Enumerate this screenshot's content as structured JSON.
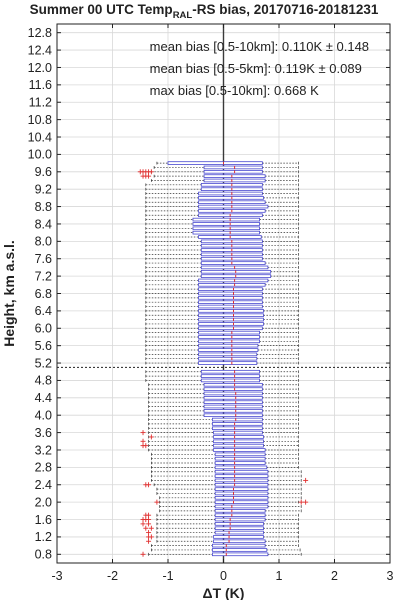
{
  "chart_data": {
    "type": "boxplot",
    "orientation": "horizontal",
    "title_parts": {
      "prefix": "Summer 00 UTC Temp",
      "subscript": "RAL",
      "suffix": "-RS bias, 20170716-20181231"
    },
    "xlabel": "ΔT (K)",
    "ylabel": "Height, km a.s.l.",
    "xlim": [
      -3,
      3
    ],
    "ylim": [
      0.6,
      13.0
    ],
    "xticks": [
      -3,
      -2,
      -1,
      0,
      1,
      2,
      3
    ],
    "yticks": [
      "0.8",
      "1.2",
      "1.6",
      "2.0",
      "2.4",
      "2.8",
      "3.2",
      "3.6",
      "4.0",
      "4.4",
      "4.8",
      "5.2",
      "5.6",
      "6.0",
      "6.4",
      "6.8",
      "7.2",
      "7.6",
      "8.0",
      "8.4",
      "8.8",
      "9.2",
      "9.6",
      "10.0",
      "10.4",
      "10.8",
      "11.2",
      "11.6",
      "12.0",
      "12.4",
      "12.8"
    ],
    "grid": true,
    "reference_lines": {
      "vertical_x": 0,
      "horizontal_y": 5.1
    },
    "annotations": [
      "mean bias [0.5-10km]: 0.110K ± 0.148",
      "mean bias [0.5-5km]: 0.119K ± 0.089",
      "max bias [0.5-10km]: 0.668 K"
    ],
    "colors": {
      "box": "#4a4ad0",
      "median": "#e03030",
      "outlier": "#e03030",
      "whisker": "#333333",
      "grid": "#d8d8d8"
    },
    "boxes": [
      {
        "h": 0.8,
        "wl": -1.35,
        "q1": -0.2,
        "med": 0.05,
        "q3": 0.8,
        "wh": 1.4,
        "out": [
          -1.45
        ]
      },
      {
        "h": 0.9,
        "wl": -1.3,
        "q1": -0.2,
        "med": 0.05,
        "q3": 0.78,
        "wh": 1.38,
        "out": []
      },
      {
        "h": 1.0,
        "wl": -1.3,
        "q1": -0.2,
        "med": 0.05,
        "q3": 0.75,
        "wh": 1.35,
        "out": []
      },
      {
        "h": 1.1,
        "wl": -1.2,
        "q1": -0.18,
        "med": 0.1,
        "q3": 0.75,
        "wh": 1.35,
        "out": [
          -1.35
        ]
      },
      {
        "h": 1.2,
        "wl": -1.2,
        "q1": -0.18,
        "med": 0.1,
        "q3": 0.72,
        "wh": 1.35,
        "out": [
          -1.35,
          -1.3
        ]
      },
      {
        "h": 1.3,
        "wl": -1.2,
        "q1": -0.15,
        "med": 0.1,
        "q3": 0.72,
        "wh": 1.35,
        "out": [
          -1.35
        ]
      },
      {
        "h": 1.4,
        "wl": -1.2,
        "q1": -0.15,
        "med": 0.12,
        "q3": 0.72,
        "wh": 1.35,
        "out": [
          -1.4,
          -1.3
        ]
      },
      {
        "h": 1.5,
        "wl": -1.2,
        "q1": -0.15,
        "med": 0.12,
        "q3": 0.72,
        "wh": 1.35,
        "out": [
          -1.45,
          -1.35
        ]
      },
      {
        "h": 1.6,
        "wl": -1.2,
        "q1": -0.15,
        "med": 0.12,
        "q3": 0.75,
        "wh": 1.35,
        "out": [
          -1.45,
          -1.4,
          -1.35
        ]
      },
      {
        "h": 1.7,
        "wl": -1.2,
        "q1": -0.15,
        "med": 0.15,
        "q3": 0.75,
        "wh": 1.35,
        "out": [
          -1.4,
          -1.35
        ]
      },
      {
        "h": 1.8,
        "wl": -1.15,
        "q1": -0.15,
        "med": 0.15,
        "q3": 0.75,
        "wh": 1.4,
        "out": []
      },
      {
        "h": 1.9,
        "wl": -1.15,
        "q1": -0.15,
        "med": 0.15,
        "q3": 0.8,
        "wh": 1.4,
        "out": []
      },
      {
        "h": 2.0,
        "wl": -1.15,
        "q1": -0.15,
        "med": 0.18,
        "q3": 0.8,
        "wh": 1.35,
        "out": [
          -1.2,
          1.4,
          1.48
        ]
      },
      {
        "h": 2.1,
        "wl": -1.15,
        "q1": -0.15,
        "med": 0.18,
        "q3": 0.8,
        "wh": 1.4,
        "out": []
      },
      {
        "h": 2.2,
        "wl": -1.2,
        "q1": -0.15,
        "med": 0.18,
        "q3": 0.8,
        "wh": 1.4,
        "out": []
      },
      {
        "h": 2.3,
        "wl": -1.2,
        "q1": -0.15,
        "med": 0.18,
        "q3": 0.8,
        "wh": 1.4,
        "out": []
      },
      {
        "h": 2.4,
        "wl": -1.25,
        "q1": -0.15,
        "med": 0.2,
        "q3": 0.8,
        "wh": 1.4,
        "out": [
          -1.4,
          -1.35
        ]
      },
      {
        "h": 2.5,
        "wl": -1.3,
        "q1": -0.15,
        "med": 0.2,
        "q3": 0.8,
        "wh": 1.4,
        "out": [
          1.48
        ]
      },
      {
        "h": 2.6,
        "wl": -1.3,
        "q1": -0.15,
        "med": 0.2,
        "q3": 0.8,
        "wh": 1.4,
        "out": []
      },
      {
        "h": 2.7,
        "wl": -1.3,
        "q1": -0.15,
        "med": 0.2,
        "q3": 0.8,
        "wh": 1.4,
        "out": []
      },
      {
        "h": 2.8,
        "wl": -1.3,
        "q1": -0.15,
        "med": 0.2,
        "q3": 0.78,
        "wh": 1.35,
        "out": []
      },
      {
        "h": 2.9,
        "wl": -1.3,
        "q1": -0.15,
        "med": 0.2,
        "q3": 0.75,
        "wh": 1.35,
        "out": []
      },
      {
        "h": 3.0,
        "wl": -1.3,
        "q1": -0.15,
        "med": 0.2,
        "q3": 0.75,
        "wh": 1.35,
        "out": []
      },
      {
        "h": 3.1,
        "wl": -1.3,
        "q1": -0.15,
        "med": 0.2,
        "q3": 0.75,
        "wh": 1.35,
        "out": []
      },
      {
        "h": 3.2,
        "wl": -1.35,
        "q1": -0.18,
        "med": 0.2,
        "q3": 0.75,
        "wh": 1.35,
        "out": []
      },
      {
        "h": 3.3,
        "wl": -1.35,
        "q1": -0.18,
        "med": 0.2,
        "q3": 0.72,
        "wh": 1.35,
        "out": [
          -1.45,
          -1.4
        ]
      },
      {
        "h": 3.4,
        "wl": -1.35,
        "q1": -0.18,
        "med": 0.2,
        "q3": 0.72,
        "wh": 1.35,
        "out": [
          -1.45
        ]
      },
      {
        "h": 3.5,
        "wl": -1.35,
        "q1": -0.18,
        "med": 0.2,
        "q3": 0.72,
        "wh": 1.35,
        "out": [
          -1.3
        ]
      },
      {
        "h": 3.6,
        "wl": -1.35,
        "q1": -0.18,
        "med": 0.2,
        "q3": 0.7,
        "wh": 1.35,
        "out": [
          -1.45
        ]
      },
      {
        "h": 3.7,
        "wl": -1.35,
        "q1": -0.2,
        "med": 0.2,
        "q3": 0.7,
        "wh": 1.35,
        "out": []
      },
      {
        "h": 3.8,
        "wl": -1.35,
        "q1": -0.2,
        "med": 0.2,
        "q3": 0.7,
        "wh": 1.35,
        "out": []
      },
      {
        "h": 3.9,
        "wl": -1.35,
        "q1": -0.2,
        "med": 0.22,
        "q3": 0.7,
        "wh": 1.35,
        "out": []
      },
      {
        "h": 4.0,
        "wl": -1.35,
        "q1": -0.35,
        "med": 0.22,
        "q3": 0.7,
        "wh": 1.35,
        "out": []
      },
      {
        "h": 4.1,
        "wl": -1.35,
        "q1": -0.35,
        "med": 0.22,
        "q3": 0.7,
        "wh": 1.35,
        "out": []
      },
      {
        "h": 4.2,
        "wl": -1.35,
        "q1": -0.35,
        "med": 0.22,
        "q3": 0.7,
        "wh": 1.35,
        "out": []
      },
      {
        "h": 4.3,
        "wl": -1.35,
        "q1": -0.35,
        "med": 0.22,
        "q3": 0.7,
        "wh": 1.35,
        "out": []
      },
      {
        "h": 4.4,
        "wl": -1.35,
        "q1": -0.35,
        "med": 0.22,
        "q3": 0.7,
        "wh": 1.35,
        "out": []
      },
      {
        "h": 4.5,
        "wl": -1.35,
        "q1": -0.35,
        "med": 0.22,
        "q3": 0.7,
        "wh": 1.35,
        "out": []
      },
      {
        "h": 4.6,
        "wl": -1.35,
        "q1": -0.35,
        "med": 0.2,
        "q3": 0.7,
        "wh": 1.35,
        "out": []
      },
      {
        "h": 4.7,
        "wl": -1.35,
        "q1": -0.35,
        "med": 0.2,
        "q3": 0.7,
        "wh": 1.35,
        "out": []
      },
      {
        "h": 4.8,
        "wl": -1.4,
        "q1": -0.4,
        "med": 0.2,
        "q3": 0.65,
        "wh": 1.35,
        "out": []
      },
      {
        "h": 4.9,
        "wl": -1.4,
        "q1": -0.4,
        "med": 0.2,
        "q3": 0.65,
        "wh": 1.35,
        "out": []
      },
      {
        "h": 5.0,
        "wl": -1.4,
        "q1": -0.4,
        "med": 0.2,
        "q3": 0.65,
        "wh": 1.35,
        "out": []
      },
      {
        "h": 5.2,
        "wl": -1.4,
        "q1": -0.45,
        "med": 0.15,
        "q3": 0.6,
        "wh": 1.35,
        "out": []
      },
      {
        "h": 5.3,
        "wl": -1.4,
        "q1": -0.45,
        "med": 0.15,
        "q3": 0.6,
        "wh": 1.35,
        "out": []
      },
      {
        "h": 5.4,
        "wl": -1.4,
        "q1": -0.45,
        "med": 0.15,
        "q3": 0.6,
        "wh": 1.35,
        "out": []
      },
      {
        "h": 5.5,
        "wl": -1.4,
        "q1": -0.45,
        "med": 0.15,
        "q3": 0.62,
        "wh": 1.35,
        "out": []
      },
      {
        "h": 5.6,
        "wl": -1.4,
        "q1": -0.45,
        "med": 0.15,
        "q3": 0.62,
        "wh": 1.35,
        "out": []
      },
      {
        "h": 5.7,
        "wl": -1.4,
        "q1": -0.45,
        "med": 0.15,
        "q3": 0.65,
        "wh": 1.35,
        "out": []
      },
      {
        "h": 5.8,
        "wl": -1.4,
        "q1": -0.45,
        "med": 0.15,
        "q3": 0.65,
        "wh": 1.35,
        "out": []
      },
      {
        "h": 5.9,
        "wl": -1.4,
        "q1": -0.45,
        "med": 0.15,
        "q3": 0.65,
        "wh": 1.35,
        "out": []
      },
      {
        "h": 6.0,
        "wl": -1.4,
        "q1": -0.45,
        "med": 0.18,
        "q3": 0.7,
        "wh": 1.35,
        "out": []
      },
      {
        "h": 6.1,
        "wl": -1.4,
        "q1": -0.45,
        "med": 0.18,
        "q3": 0.72,
        "wh": 1.35,
        "out": []
      },
      {
        "h": 6.2,
        "wl": -1.4,
        "q1": -0.45,
        "med": 0.18,
        "q3": 0.72,
        "wh": 1.35,
        "out": []
      },
      {
        "h": 6.3,
        "wl": -1.4,
        "q1": -0.45,
        "med": 0.18,
        "q3": 0.72,
        "wh": 1.35,
        "out": []
      },
      {
        "h": 6.4,
        "wl": -1.4,
        "q1": -0.45,
        "med": 0.18,
        "q3": 0.72,
        "wh": 1.35,
        "out": []
      },
      {
        "h": 6.5,
        "wl": -1.4,
        "q1": -0.45,
        "med": 0.18,
        "q3": 0.7,
        "wh": 1.35,
        "out": []
      },
      {
        "h": 6.6,
        "wl": -1.4,
        "q1": -0.45,
        "med": 0.18,
        "q3": 0.7,
        "wh": 1.35,
        "out": []
      },
      {
        "h": 6.7,
        "wl": -1.4,
        "q1": -0.45,
        "med": 0.18,
        "q3": 0.7,
        "wh": 1.35,
        "out": []
      },
      {
        "h": 6.8,
        "wl": -1.4,
        "q1": -0.45,
        "med": 0.18,
        "q3": 0.7,
        "wh": 1.35,
        "out": []
      },
      {
        "h": 6.9,
        "wl": -1.4,
        "q1": -0.45,
        "med": 0.18,
        "q3": 0.7,
        "wh": 1.35,
        "out": []
      },
      {
        "h": 7.0,
        "wl": -1.4,
        "q1": -0.45,
        "med": 0.2,
        "q3": 0.75,
        "wh": 1.35,
        "out": []
      },
      {
        "h": 7.1,
        "wl": -1.4,
        "q1": -0.45,
        "med": 0.2,
        "q3": 0.8,
        "wh": 1.35,
        "out": []
      },
      {
        "h": 7.2,
        "wl": -1.4,
        "q1": -0.4,
        "med": 0.22,
        "q3": 0.85,
        "wh": 1.35,
        "out": []
      },
      {
        "h": 7.3,
        "wl": -1.4,
        "q1": -0.4,
        "med": 0.22,
        "q3": 0.85,
        "wh": 1.35,
        "out": []
      },
      {
        "h": 7.4,
        "wl": -1.4,
        "q1": -0.4,
        "med": 0.2,
        "q3": 0.8,
        "wh": 1.35,
        "out": []
      },
      {
        "h": 7.5,
        "wl": -1.4,
        "q1": -0.4,
        "med": 0.15,
        "q3": 0.75,
        "wh": 1.35,
        "out": []
      },
      {
        "h": 7.6,
        "wl": -1.4,
        "q1": -0.4,
        "med": 0.15,
        "q3": 0.7,
        "wh": 1.35,
        "out": []
      },
      {
        "h": 7.7,
        "wl": -1.4,
        "q1": -0.4,
        "med": 0.15,
        "q3": 0.7,
        "wh": 1.35,
        "out": []
      },
      {
        "h": 7.8,
        "wl": -1.4,
        "q1": -0.4,
        "med": 0.15,
        "q3": 0.7,
        "wh": 1.35,
        "out": []
      },
      {
        "h": 7.9,
        "wl": -1.4,
        "q1": -0.4,
        "med": 0.15,
        "q3": 0.7,
        "wh": 1.35,
        "out": []
      },
      {
        "h": 8.0,
        "wl": -1.4,
        "q1": -0.4,
        "med": 0.15,
        "q3": 0.7,
        "wh": 1.35,
        "out": []
      },
      {
        "h": 8.1,
        "wl": -1.4,
        "q1": -0.45,
        "med": 0.12,
        "q3": 0.68,
        "wh": 1.35,
        "out": []
      },
      {
        "h": 8.2,
        "wl": -1.4,
        "q1": -0.55,
        "med": 0.12,
        "q3": 0.65,
        "wh": 1.35,
        "out": []
      },
      {
        "h": 8.3,
        "wl": -1.4,
        "q1": -0.55,
        "med": 0.12,
        "q3": 0.65,
        "wh": 1.35,
        "out": []
      },
      {
        "h": 8.4,
        "wl": -1.4,
        "q1": -0.55,
        "med": 0.12,
        "q3": 0.65,
        "wh": 1.35,
        "out": []
      },
      {
        "h": 8.5,
        "wl": -1.4,
        "q1": -0.55,
        "med": 0.12,
        "q3": 0.65,
        "wh": 1.35,
        "out": []
      },
      {
        "h": 8.6,
        "wl": -1.4,
        "q1": -0.45,
        "med": 0.12,
        "q3": 0.7,
        "wh": 1.35,
        "out": []
      },
      {
        "h": 8.7,
        "wl": -1.4,
        "q1": -0.45,
        "med": 0.15,
        "q3": 0.75,
        "wh": 1.35,
        "out": []
      },
      {
        "h": 8.8,
        "wl": -1.4,
        "q1": -0.45,
        "med": 0.15,
        "q3": 0.8,
        "wh": 1.35,
        "out": []
      },
      {
        "h": 8.9,
        "wl": -1.4,
        "q1": -0.45,
        "med": 0.15,
        "q3": 0.75,
        "wh": 1.35,
        "out": []
      },
      {
        "h": 9.0,
        "wl": -1.4,
        "q1": -0.45,
        "med": 0.15,
        "q3": 0.72,
        "wh": 1.35,
        "out": []
      },
      {
        "h": 9.1,
        "wl": -1.4,
        "q1": -0.45,
        "med": 0.15,
        "q3": 0.7,
        "wh": 1.35,
        "out": []
      },
      {
        "h": 9.2,
        "wl": -1.4,
        "q1": -0.4,
        "med": 0.15,
        "q3": 0.7,
        "wh": 1.35,
        "out": []
      },
      {
        "h": 9.3,
        "wl": -1.4,
        "q1": -0.4,
        "med": 0.15,
        "q3": 0.7,
        "wh": 1.35,
        "out": []
      },
      {
        "h": 9.4,
        "wl": -1.3,
        "q1": -0.35,
        "med": 0.15,
        "q3": 0.75,
        "wh": 1.35,
        "out": []
      },
      {
        "h": 9.5,
        "wl": -1.25,
        "q1": -0.35,
        "med": 0.15,
        "q3": 0.75,
        "wh": 1.35,
        "out": [
          -1.45,
          -1.4,
          -1.35
        ]
      },
      {
        "h": 9.6,
        "wl": -1.3,
        "q1": -0.35,
        "med": 0.2,
        "q3": 0.7,
        "wh": 1.35,
        "out": [
          -1.5,
          -1.45,
          -1.4,
          -1.35,
          -1.3
        ]
      },
      {
        "h": 9.7,
        "wl": -1.25,
        "q1": -0.35,
        "med": 0.2,
        "q3": 0.7,
        "wh": 1.35,
        "out": []
      },
      {
        "h": 9.8,
        "wl": -1.2,
        "q1": -1.0,
        "med": 0.0,
        "q3": 0.7,
        "wh": 1.35,
        "out": []
      }
    ]
  }
}
